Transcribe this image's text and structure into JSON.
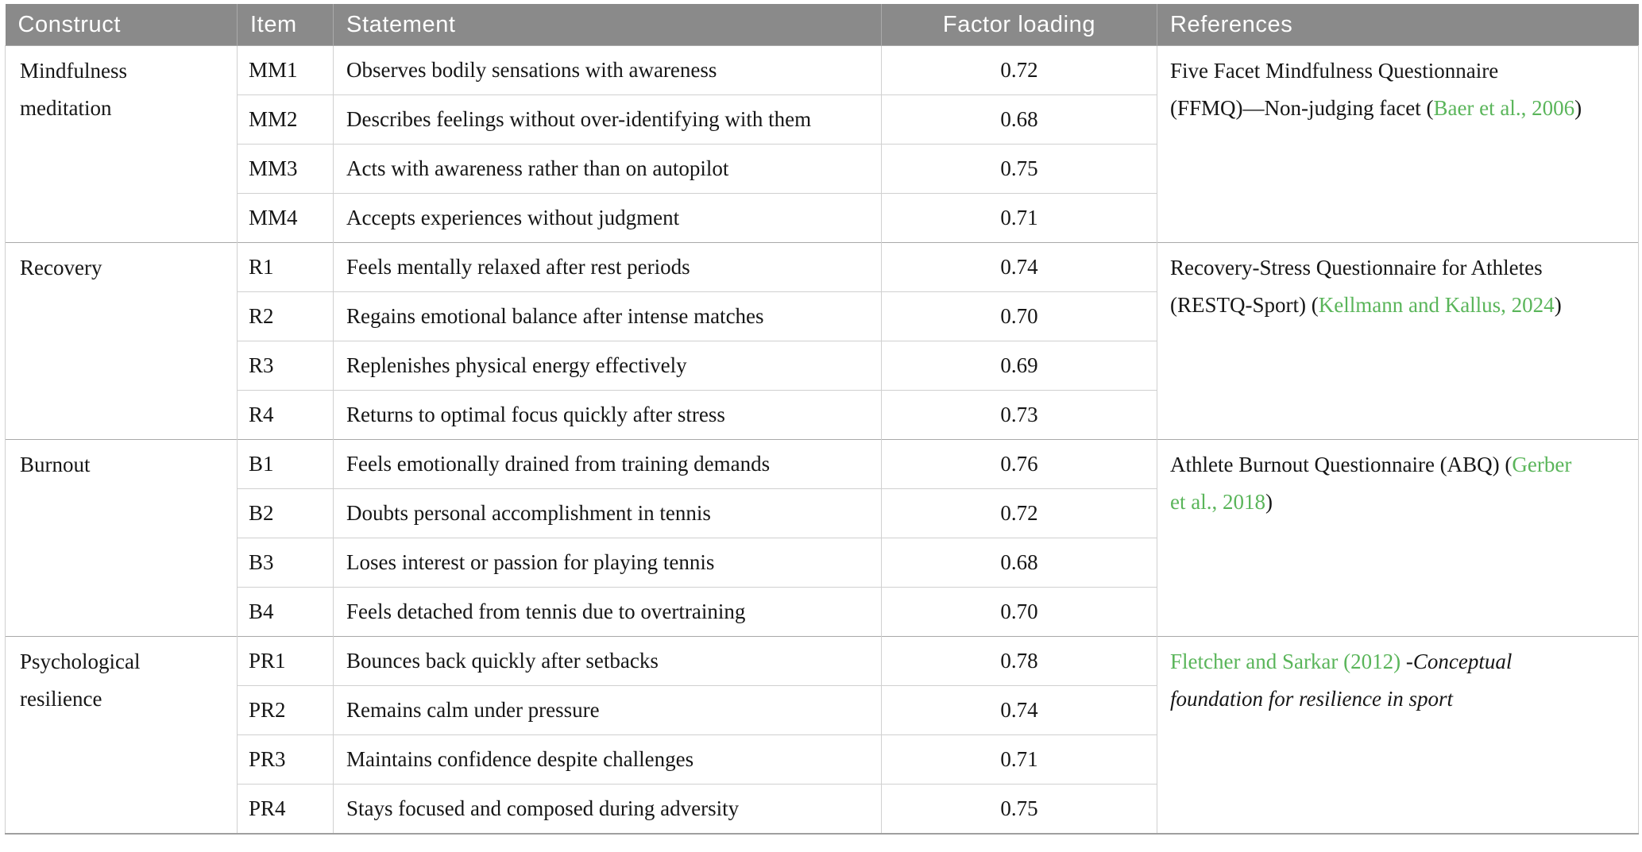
{
  "theme": {
    "header_bg": "#8a8a8a",
    "header_text": "#ffffff",
    "citation_green": "#5ab55a",
    "body_text": "#161616",
    "grid_line": "#d0d0d0",
    "group_line": "#a9a9a9",
    "bottom_border": "#9f9f9f"
  },
  "table": {
    "columns": [
      "Construct",
      "Item",
      "Statement",
      "Factor loading",
      "References"
    ],
    "groups": [
      {
        "construct": "Mindfulness\nmeditation",
        "reference_segments": [
          {
            "type": "text",
            "text": "Five Facet Mindfulness Questionnaire\n(FFMQ)—Non-judging facet ("
          },
          {
            "type": "citation",
            "text": "Baer et al., 2006"
          },
          {
            "type": "text",
            "text": ")"
          }
        ],
        "items": [
          {
            "item": "MM1",
            "statement": "Observes bodily sensations with awareness",
            "loading": "0.72"
          },
          {
            "item": "MM2",
            "statement": "Describes feelings without over-identifying with them",
            "loading": "0.68"
          },
          {
            "item": "MM3",
            "statement": "Acts with awareness rather than on autopilot",
            "loading": "0.75"
          },
          {
            "item": "MM4",
            "statement": "Accepts experiences without judgment",
            "loading": "0.71"
          }
        ]
      },
      {
        "construct": "Recovery",
        "reference_segments": [
          {
            "type": "text",
            "text": "Recovery-Stress Questionnaire for Athletes\n(RESTQ-Sport) ("
          },
          {
            "type": "citation",
            "text": "Kellmann and Kallus, 2024"
          },
          {
            "type": "text",
            "text": ")"
          }
        ],
        "items": [
          {
            "item": "R1",
            "statement": "Feels mentally relaxed after rest periods",
            "loading": "0.74"
          },
          {
            "item": "R2",
            "statement": "Regains emotional balance after intense matches",
            "loading": "0.70"
          },
          {
            "item": "R3",
            "statement": "Replenishes physical energy effectively",
            "loading": "0.69"
          },
          {
            "item": "R4",
            "statement": "Returns to optimal focus quickly after stress",
            "loading": "0.73"
          }
        ]
      },
      {
        "construct": "Burnout",
        "reference_segments": [
          {
            "type": "text",
            "text": "Athlete Burnout Questionnaire (ABQ) ("
          },
          {
            "type": "citation",
            "text": "Gerber\net al., 2018"
          },
          {
            "type": "text",
            "text": ")"
          }
        ],
        "items": [
          {
            "item": "B1",
            "statement": "Feels emotionally drained from training demands",
            "loading": "0.76"
          },
          {
            "item": "B2",
            "statement": "Doubts personal accomplishment in tennis",
            "loading": "0.72"
          },
          {
            "item": "B3",
            "statement": "Loses interest or passion for playing tennis",
            "loading": "0.68"
          },
          {
            "item": "B4",
            "statement": "Feels detached from tennis due to overtraining",
            "loading": "0.70"
          }
        ]
      },
      {
        "construct": "Psychological\nresilience",
        "reference_segments": [
          {
            "type": "citation",
            "text": "Fletcher and Sarkar (2012)"
          },
          {
            "type": "text",
            "text": " "
          },
          {
            "type": "italic",
            "text": "-Conceptual\nfoundation for resilience in sport"
          }
        ],
        "items": [
          {
            "item": "PR1",
            "statement": "Bounces back quickly after setbacks",
            "loading": "0.78"
          },
          {
            "item": "PR2",
            "statement": "Remains calm under pressure",
            "loading": "0.74"
          },
          {
            "item": "PR3",
            "statement": "Maintains confidence despite challenges",
            "loading": "0.71"
          },
          {
            "item": "PR4",
            "statement": "Stays focused and composed during adversity",
            "loading": "0.75"
          }
        ]
      }
    ]
  }
}
